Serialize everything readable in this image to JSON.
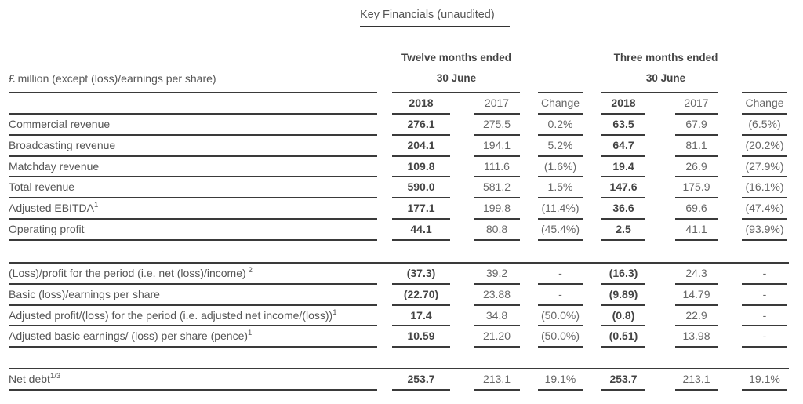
{
  "title": "Key Financials (unaudited)",
  "unit_label": "£ million (except (loss)/earnings per share)",
  "groups": [
    {
      "line1": "Twelve months ended",
      "line2": "30 June"
    },
    {
      "line1": "Three months ended",
      "line2": "30 June"
    }
  ],
  "columns": [
    "2018",
    "2017",
    "Change",
    "2018",
    "2017",
    "Change"
  ],
  "sections": [
    {
      "rows": [
        {
          "label": "Commercial revenue",
          "sup": "",
          "values": [
            "276.1",
            "275.5",
            "0.2%",
            "63.5",
            "67.9",
            "(6.5%)"
          ]
        },
        {
          "label": "Broadcasting revenue",
          "sup": "",
          "values": [
            "204.1",
            "194.1",
            "5.2%",
            "64.7",
            "81.1",
            "(20.2%)"
          ]
        },
        {
          "label": "Matchday revenue",
          "sup": "",
          "values": [
            "109.8",
            "111.6",
            "(1.6%)",
            "19.4",
            "26.9",
            "(27.9%)"
          ]
        },
        {
          "label": "Total revenue",
          "sup": "",
          "values": [
            "590.0",
            "581.2",
            "1.5%",
            "147.6",
            "175.9",
            "(16.1%)"
          ]
        },
        {
          "label": "Adjusted EBITDA",
          "sup": "1",
          "values": [
            "177.1",
            "199.8",
            "(11.4%)",
            "36.6",
            "69.6",
            "(47.4%)"
          ]
        },
        {
          "label": "Operating profit",
          "sup": "",
          "values": [
            "44.1",
            "80.8",
            "(45.4%)",
            "2.5",
            "41.1",
            "(93.9%)"
          ]
        }
      ]
    },
    {
      "rows": [
        {
          "label": "(Loss)/profit for the period (i.e. net (loss)/income)",
          "sup": "2",
          "values": [
            "(37.3)",
            "39.2",
            "-",
            "(16.3)",
            "24.3",
            "-"
          ]
        },
        {
          "label": "Basic (loss)/earnings per share",
          "sup": "",
          "values": [
            "(22.70)",
            "23.88",
            "-",
            "(9.89)",
            "14.79",
            "-"
          ]
        },
        {
          "label": "Adjusted profit/(loss) for the period (i.e. adjusted net income/(loss))",
          "sup": "1",
          "values": [
            "17.4",
            "34.8",
            "(50.0%)",
            "(0.8)",
            "22.9",
            "-"
          ]
        },
        {
          "label": "Adjusted basic earnings/ (loss) per share (pence)",
          "sup": "1",
          "values": [
            "10.59",
            "21.20",
            "(50.0%)",
            "(0.51)",
            "13.98",
            "-"
          ]
        }
      ]
    },
    {
      "rows": [
        {
          "label": "Net debt",
          "sup": "1/3",
          "values": [
            "253.7",
            "213.1",
            "19.1%",
            "253.7",
            "213.1",
            "19.1%"
          ]
        }
      ]
    }
  ]
}
